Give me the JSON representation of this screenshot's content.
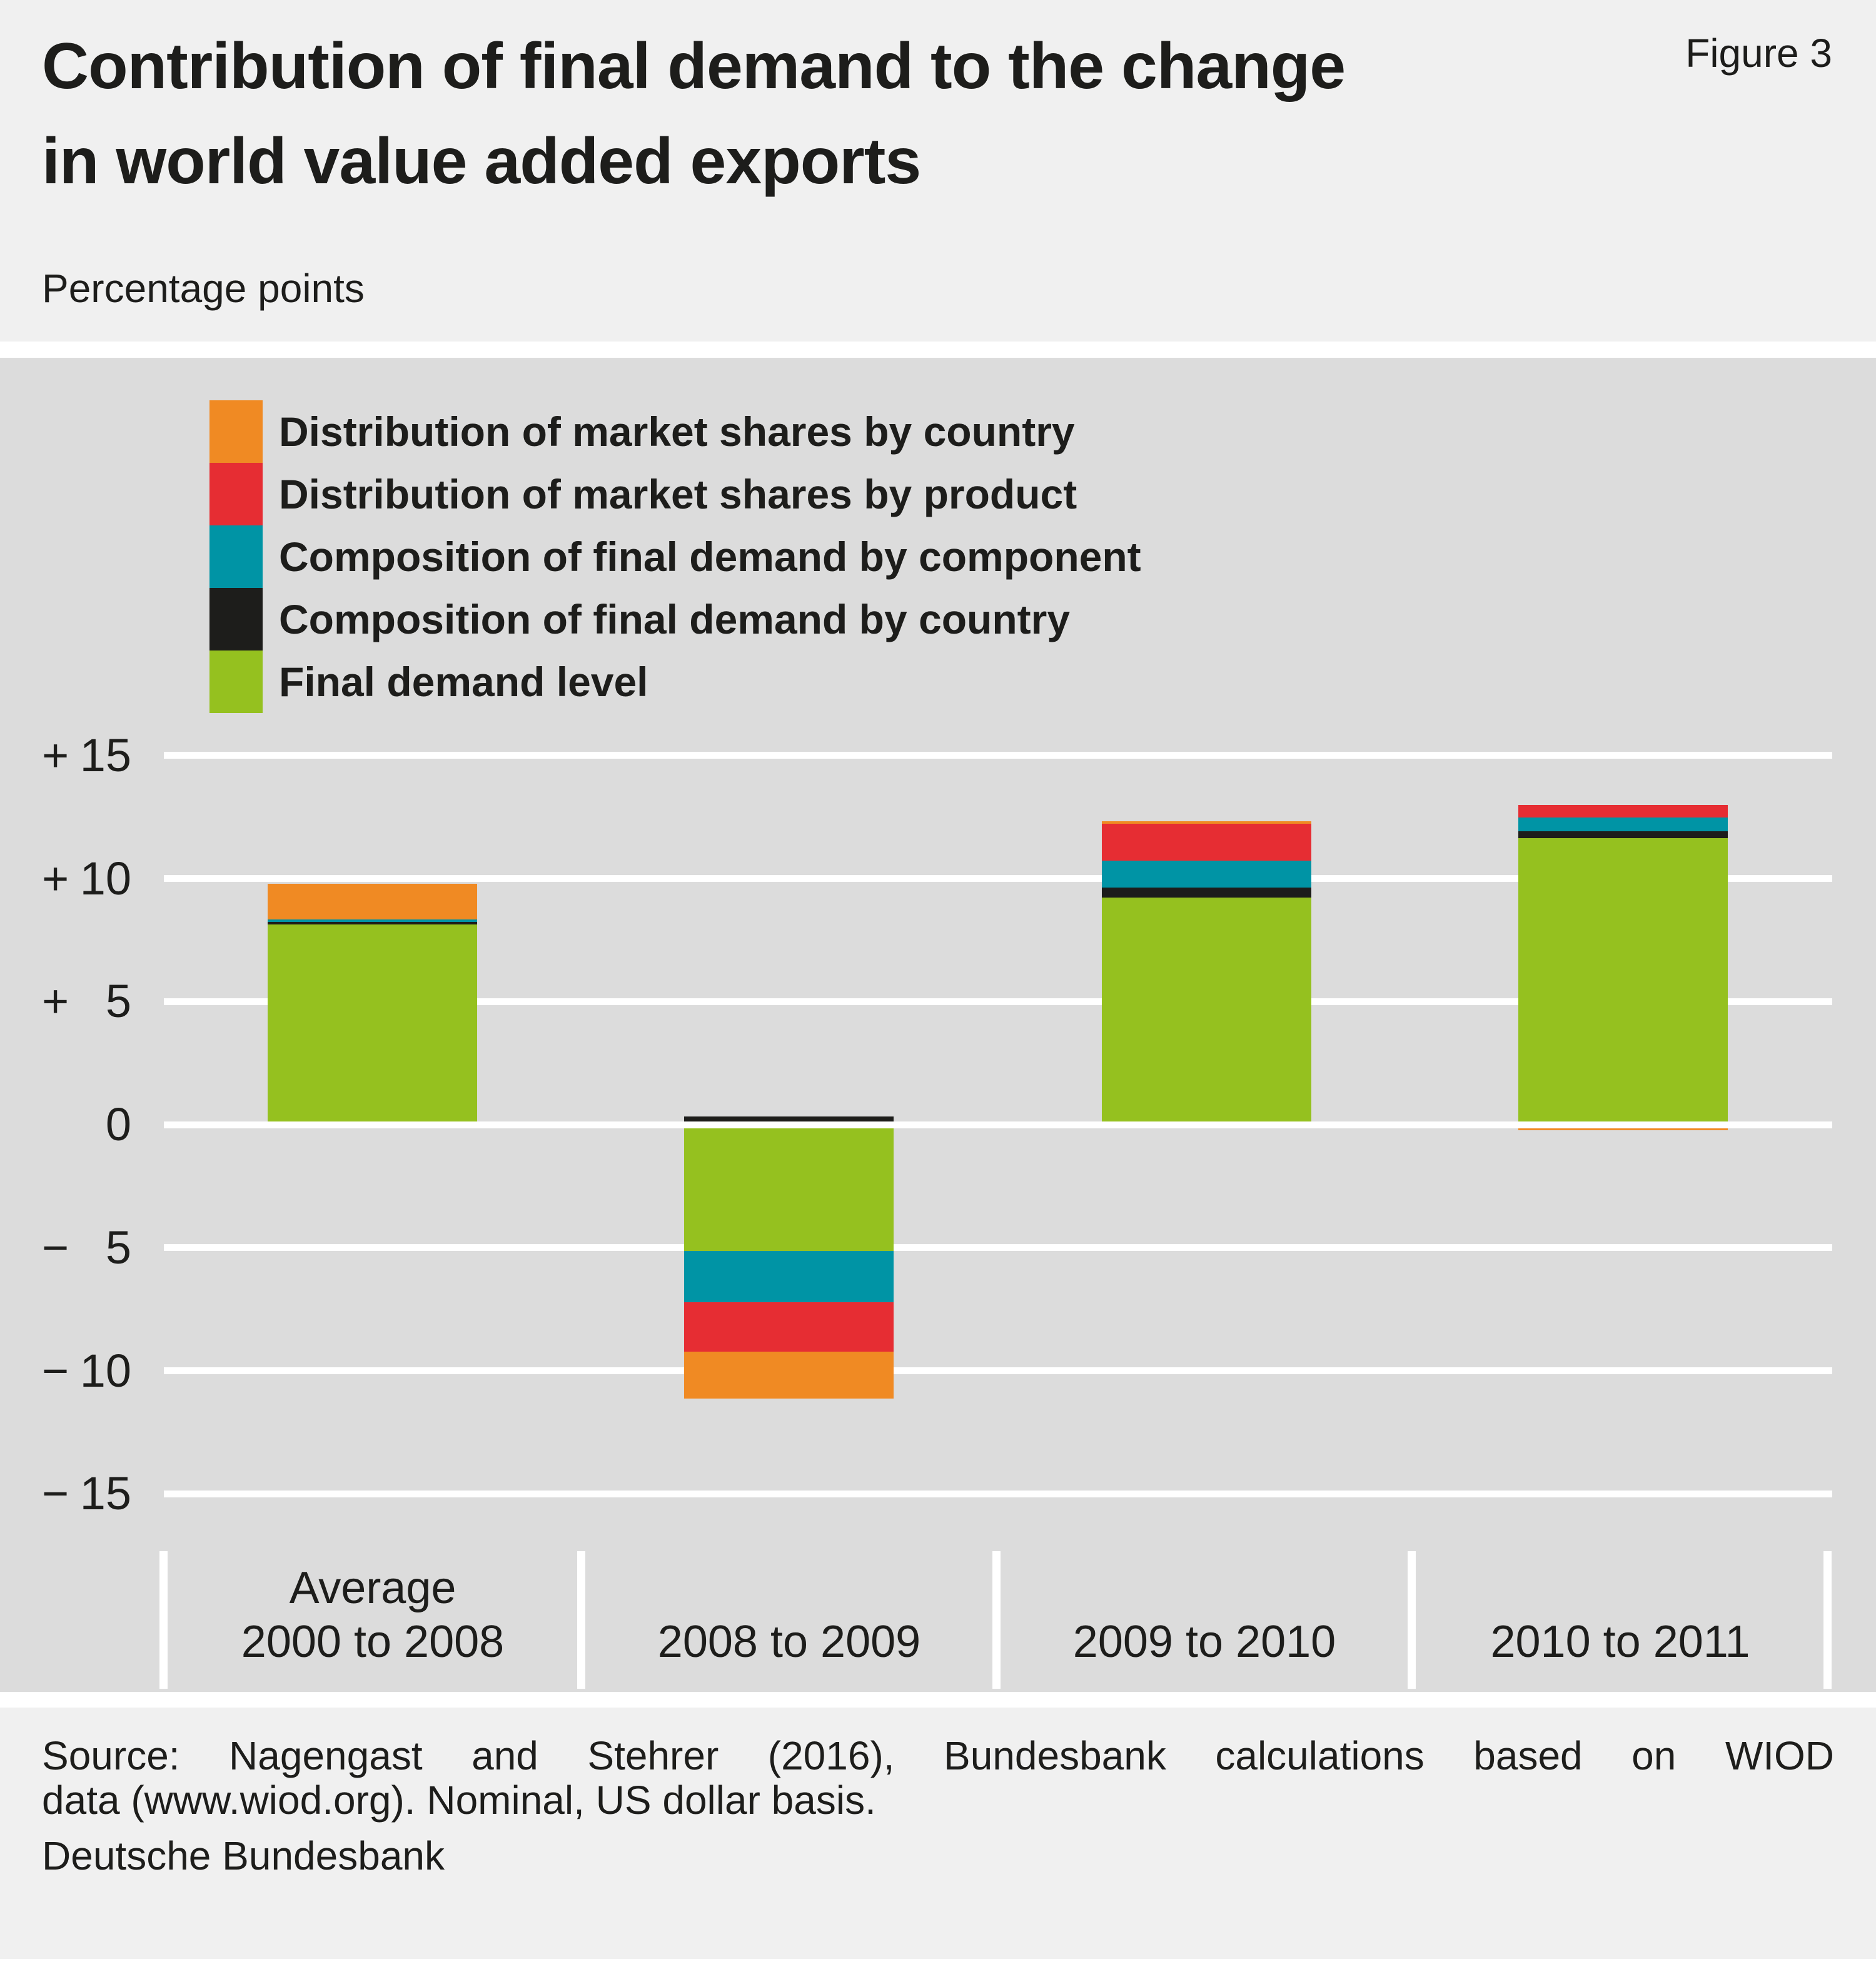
{
  "header": {
    "title_line1": "Contribution of final demand to the change",
    "title_line2": "in world value added exports",
    "figure_label": "Figure 3",
    "subtitle": "Percentage points"
  },
  "legend": {
    "items": [
      {
        "label": "Distribution of market shares by country",
        "color": "#f08a23"
      },
      {
        "label": "Distribution of market shares by product",
        "color": "#e62d33"
      },
      {
        "label": "Composition of final demand by component",
        "color": "#0094a5"
      },
      {
        "label": "Composition of final demand by country",
        "color": "#1d1d1b"
      },
      {
        "label": "Final demand level",
        "color": "#95c11f"
      }
    ]
  },
  "chart_data": {
    "type": "bar",
    "stacked": true,
    "unit": "percentage points",
    "title": "Contribution of final demand to the change in world value added exports",
    "ylabel": "Percentage points",
    "ylim": [
      -15,
      15
    ],
    "grid": "horizontal-white-lines",
    "legend_position": "top-left",
    "categories": [
      [
        "Average",
        "2000 to 2008"
      ],
      [
        "2008 to 2009"
      ],
      [
        "2009 to 2010"
      ],
      [
        "2010 to 2011"
      ]
    ],
    "series": [
      {
        "name": "Final demand level",
        "color": "#95c11f",
        "values": [
          8.0,
          -5.0,
          9.1,
          11.5
        ]
      },
      {
        "name": "Composition of final demand by country",
        "color": "#1d1d1b",
        "values": [
          0.1,
          0.2,
          0.4,
          0.3
        ]
      },
      {
        "name": "Composition of final demand by component",
        "color": "#0094a5",
        "values": [
          0.1,
          -2.1,
          1.1,
          0.55
        ]
      },
      {
        "name": "Distribution of market shares by product",
        "color": "#e62d33",
        "values": [
          0.0,
          -2.0,
          1.5,
          0.5
        ]
      },
      {
        "name": "Distribution of market shares by country",
        "color": "#f08a23",
        "values": [
          1.45,
          -1.9,
          0.1,
          -0.1
        ]
      }
    ],
    "totals_net": [
      9.65,
      -10.8,
      12.2,
      12.75
    ],
    "yticks": [
      {
        "sign": "+",
        "num": "15",
        "value": 15
      },
      {
        "sign": "+",
        "num": "10",
        "value": 10
      },
      {
        "sign": "+",
        "num": "5",
        "value": 5
      },
      {
        "sign": "",
        "num": "0",
        "value": 0
      },
      {
        "sign": "−",
        "num": "5",
        "value": -5
      },
      {
        "sign": "−",
        "num": "10",
        "value": -10
      },
      {
        "sign": "−",
        "num": "15",
        "value": -15
      }
    ]
  },
  "footer": {
    "source_line1": "Source: Nagengast and Stehrer (2016), Bundesbank calculations based on WIOD",
    "source_line2": "data (www.wiod.org). Nominal, US dollar basis.",
    "publisher": "Deutsche Bundesbank"
  },
  "colors": {
    "text": "#1d1d1b",
    "header_background": "#f0f0f0",
    "plot_background": "#dcdcdc",
    "gridline": "#ffffff",
    "orange": "#f08a23",
    "red": "#e62d33",
    "teal": "#0094a5",
    "black": "#1d1d1b",
    "green": "#95c11f"
  }
}
